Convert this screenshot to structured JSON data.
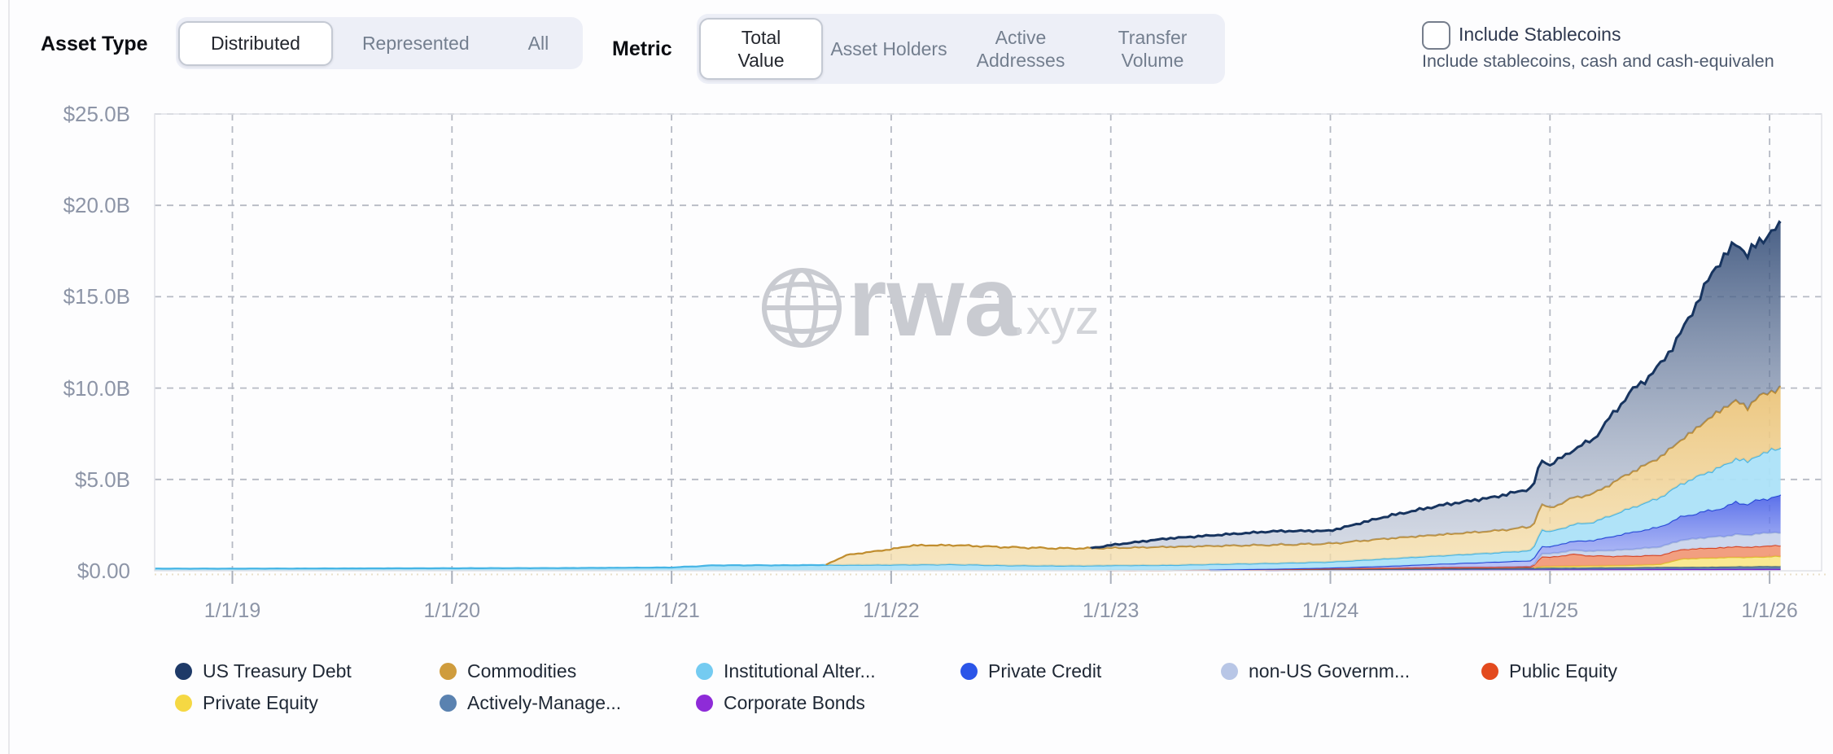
{
  "toolbar": {
    "asset_type": {
      "label": "Asset Type",
      "options": [
        "Distributed",
        "Represented",
        "All"
      ],
      "selected": "Distributed"
    },
    "metric": {
      "label": "Metric",
      "options": [
        "Total Value",
        "Asset Holders",
        "Active Addresses",
        "Transfer Volume"
      ],
      "selected": "Total Value"
    },
    "stablecoins": {
      "label": "Include Stablecoins",
      "description": "Include stablecoins, cash and cash-equivalen",
      "checked": false
    }
  },
  "watermark": {
    "icon": "globe-icon",
    "text": "rwa",
    "suffix": ".xyz",
    "color": "#c9cbd1",
    "suffix_color": "#d2d4d9"
  },
  "axes": {
    "y_ticks": [
      "$25.0B",
      "$20.0B",
      "$15.0B",
      "$10.0B",
      "$5.0B",
      "$0.00"
    ],
    "y_values": [
      25,
      20,
      15,
      10,
      5,
      0
    ],
    "x_ticks": [
      "1/1/19",
      "1/1/20",
      "1/1/21",
      "1/1/22",
      "1/1/23",
      "1/1/24",
      "1/1/25",
      "1/1/26"
    ],
    "x_years": [
      2019,
      2020,
      2021,
      2022,
      2023,
      2024,
      2025,
      2026
    ],
    "label_color": "#8d95a7",
    "grid_color": "#b6bac4",
    "zero_line_color": "#e9dfc9"
  },
  "legend": {
    "row1": [
      "US Treasury Debt",
      "Commodities",
      "Institutional Alter...",
      "Private Credit",
      "non-US Governm...",
      "Public Equity"
    ],
    "row2": [
      "Private Equity",
      "Actively-Manage...",
      "Corporate Bonds"
    ]
  },
  "chart_data": {
    "type": "area",
    "stacked": true,
    "title": "",
    "xlabel": "",
    "ylabel": "",
    "y_unit": "$B",
    "ylim": [
      0,
      25
    ],
    "grid": "dashed",
    "legend_position": "bottom",
    "dates": [
      2018.64,
      2019.0,
      2019.5,
      2020.0,
      2020.5,
      2021.0,
      2021.2,
      2021.5,
      2021.7,
      2021.8,
      2022.0,
      2022.1,
      2022.3,
      2022.5,
      2022.75,
      2022.9,
      2023.0,
      2023.25,
      2023.5,
      2023.75,
      2024.0,
      2024.25,
      2024.5,
      2024.75,
      2024.92,
      2024.96,
      2025.0,
      2025.1,
      2025.2,
      2025.35,
      2025.5,
      2025.6,
      2025.75,
      2025.8,
      2025.85,
      2025.9,
      2025.95,
      2026.05
    ],
    "series": [
      {
        "name": "Corporate Bonds",
        "swatch": "#8e2bd8",
        "stroke": "#6f24c9",
        "fill_top": "rgba(140,70,208,0.9)",
        "values": [
          0,
          0,
          0,
          0,
          0,
          0,
          0,
          0,
          0,
          0,
          0,
          0,
          0,
          0,
          0,
          0,
          0,
          0,
          0,
          0.02,
          0.03,
          0.04,
          0.05,
          0.05,
          0.06,
          0.06,
          0.07,
          0.07,
          0.07,
          0.08,
          0.09,
          0.09,
          0.09,
          0.1,
          0.1,
          0.1,
          0.1,
          0.1
        ]
      },
      {
        "name": "Actively-Manage...",
        "swatch": "#5a82b0",
        "stroke": "#3c5f80",
        "fill_top": "rgba(92,130,173,0.9)",
        "values": [
          0,
          0,
          0,
          0,
          0,
          0,
          0,
          0,
          0,
          0,
          0,
          0,
          0,
          0,
          0,
          0,
          0,
          0,
          0.02,
          0.03,
          0.05,
          0.06,
          0.08,
          0.09,
          0.1,
          0.1,
          0.1,
          0.1,
          0.11,
          0.11,
          0.12,
          0.12,
          0.13,
          0.13,
          0.14,
          0.14,
          0.15,
          0.15
        ]
      },
      {
        "name": "Private Equity",
        "swatch": "#f5d843",
        "stroke": "#e0c232",
        "fill_top": "rgba(250,232,140,0.95)",
        "values": [
          0,
          0,
          0,
          0,
          0,
          0,
          0,
          0,
          0,
          0,
          0,
          0,
          0,
          0,
          0,
          0,
          0,
          0,
          0,
          0,
          0,
          0,
          0,
          0,
          0,
          0.08,
          0.08,
          0.1,
          0.1,
          0.12,
          0.15,
          0.45,
          0.5,
          0.5,
          0.52,
          0.5,
          0.52,
          0.55
        ]
      },
      {
        "name": "Public Equity",
        "swatch": "#e34a1e",
        "stroke": "#d64425",
        "fill_top": "rgba(241,151,117,0.92)",
        "values": [
          0,
          0,
          0,
          0,
          0,
          0,
          0,
          0,
          0,
          0,
          0,
          0,
          0,
          0,
          0,
          0,
          0.02,
          0.02,
          0.03,
          0.03,
          0.04,
          0.04,
          0.05,
          0.05,
          0.06,
          0.55,
          0.5,
          0.65,
          0.55,
          0.5,
          0.5,
          0.52,
          0.55,
          0.55,
          0.6,
          0.55,
          0.58,
          0.6
        ]
      },
      {
        "name": "non-US Governm...",
        "swatch": "#b8c6e6",
        "stroke": "#a6b7dc",
        "fill_top": "rgba(202,213,236,0.95)",
        "values": [
          0,
          0,
          0,
          0,
          0,
          0,
          0,
          0,
          0,
          0,
          0,
          0,
          0,
          0,
          0,
          0,
          0,
          0,
          0,
          0,
          0,
          0,
          0,
          0,
          0,
          0.15,
          0.18,
          0.2,
          0.25,
          0.35,
          0.45,
          0.5,
          0.6,
          0.6,
          0.65,
          0.65,
          0.7,
          0.7
        ]
      },
      {
        "name": "Private Credit",
        "swatch": "#2b55e8",
        "stroke": "#2746d6",
        "fill_top": "rgba(76,99,232,0.92)",
        "fill_bottom": "rgba(148,163,243,0.6)",
        "values": [
          0,
          0,
          0,
          0,
          0,
          0,
          0,
          0,
          0,
          0,
          0,
          0,
          0,
          0,
          0,
          0,
          0,
          0,
          0.02,
          0.03,
          0.05,
          0.12,
          0.2,
          0.3,
          0.35,
          0.4,
          0.4,
          0.5,
          0.6,
          0.9,
          1.1,
          1.3,
          1.5,
          1.6,
          1.8,
          1.7,
          1.85,
          2.0
        ]
      },
      {
        "name": "Institutional Alter...",
        "swatch": "#74cbf1",
        "stroke": "#46b5e5",
        "fill_top": "rgba(172,225,248,0.95)",
        "values": [
          0.12,
          0.12,
          0.13,
          0.14,
          0.15,
          0.18,
          0.3,
          0.3,
          0.32,
          0.32,
          0.33,
          0.34,
          0.35,
          0.3,
          0.28,
          0.28,
          0.28,
          0.29,
          0.3,
          0.31,
          0.32,
          0.4,
          0.45,
          0.5,
          0.55,
          0.95,
          0.8,
          0.9,
          1.0,
          1.3,
          1.6,
          1.8,
          2.2,
          2.3,
          2.4,
          2.3,
          2.5,
          2.6
        ]
      },
      {
        "name": "Commodities",
        "swatch": "#cf9c3d",
        "stroke": "#c08d2e",
        "fill_top": "rgba(235,196,122,0.95)",
        "fill_bottom": "rgba(244,222,172,0.75)",
        "values": [
          0,
          0,
          0,
          0,
          0,
          0,
          0,
          0,
          0,
          0.55,
          0.85,
          1.05,
          1.05,
          1.0,
          0.95,
          0.95,
          0.95,
          1.0,
          1.0,
          1.0,
          1.0,
          1.1,
          1.15,
          1.2,
          1.3,
          1.35,
          1.3,
          1.45,
          1.55,
          1.9,
          2.2,
          2.4,
          3.0,
          3.2,
          3.1,
          3.0,
          3.15,
          3.3
        ]
      },
      {
        "name": "US Treasury Debt",
        "swatch": "#1e3a68",
        "stroke": "#17345f",
        "fill_top": "rgba(48,74,117,0.88)",
        "fill_bottom": "rgba(170,181,203,0.42)",
        "values": [
          0,
          0,
          0,
          0,
          0,
          0,
          0,
          0,
          0,
          0,
          0,
          0,
          0,
          0,
          0,
          0,
          0.15,
          0.45,
          0.6,
          0.75,
          0.7,
          1.2,
          1.6,
          1.85,
          2.1,
          2.45,
          2.35,
          2.6,
          3.0,
          4.3,
          5.0,
          5.9,
          8.0,
          8.3,
          8.7,
          8.3,
          8.5,
          8.8
        ]
      }
    ]
  }
}
